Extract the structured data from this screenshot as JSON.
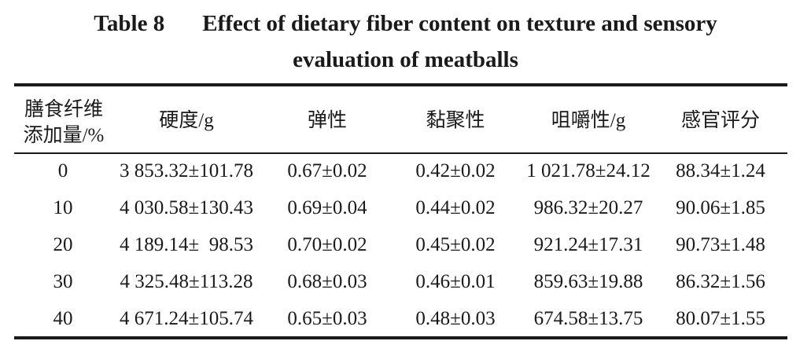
{
  "caption": {
    "label": "Table 8",
    "title_line1": "Effect of dietary fiber content on texture and sensory",
    "title_line2": "evaluation of meatballs"
  },
  "table": {
    "headers": {
      "fiber_line1": "膳食纤维",
      "fiber_line2": "添加量/%",
      "hardness": "硬度/g",
      "springiness": "弹性",
      "cohesiveness": "黏聚性",
      "chewiness": "咀嚼性/g",
      "sensory": "感官评分"
    },
    "rows": [
      [
        "0",
        "3 853.32±101.78",
        "0.67±0.02",
        "0.42±0.02",
        "1 021.78±24.12",
        "88.34±1.24"
      ],
      [
        "10",
        "4 030.58±130.43",
        "0.69±0.04",
        "0.44±0.02",
        "986.32±20.27",
        "90.06±1.85"
      ],
      [
        "20",
        "4 189.14±  98.53",
        "0.70±0.02",
        "0.45±0.02",
        "921.24±17.31",
        "90.73±1.48"
      ],
      [
        "30",
        "4 325.48±113.28",
        "0.68±0.03",
        "0.46±0.01",
        "859.63±19.88",
        "86.32±1.56"
      ],
      [
        "40",
        "4 671.24±105.74",
        "0.65±0.03",
        "0.48±0.03",
        "674.58±13.75",
        "80.07±1.55"
      ]
    ]
  }
}
